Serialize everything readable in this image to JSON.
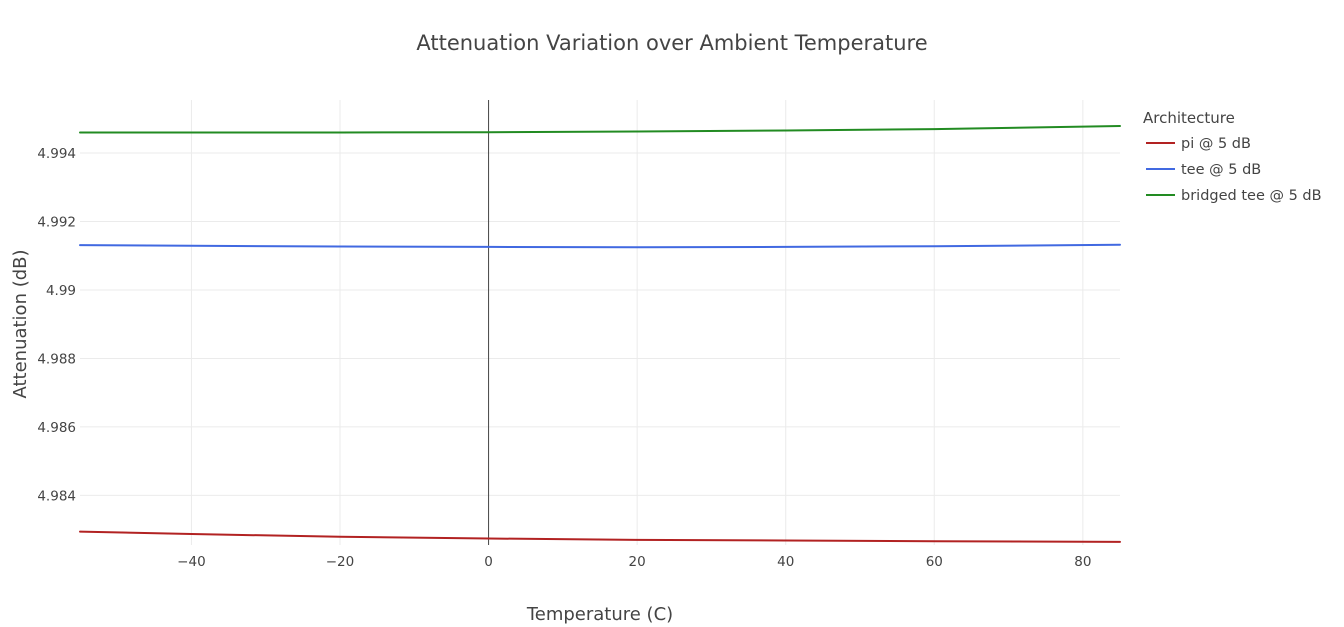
{
  "chart_data": {
    "type": "line",
    "title": "Attenuation Variation over Ambient Temperature",
    "xlabel": "Temperature (C)",
    "ylabel": "Attenuation (dB)",
    "xlim": [
      -55,
      85
    ],
    "ylim": [
      4.98255,
      4.99555
    ],
    "x_ticks": [
      {
        "value": -40,
        "label": "−40"
      },
      {
        "value": -20,
        "label": "−20"
      },
      {
        "value": 0,
        "label": "0"
      },
      {
        "value": 20,
        "label": "20"
      },
      {
        "value": 40,
        "label": "40"
      },
      {
        "value": 60,
        "label": "60"
      },
      {
        "value": 80,
        "label": "80"
      }
    ],
    "y_ticks": [
      {
        "value": 4.984,
        "label": "4.984"
      },
      {
        "value": 4.986,
        "label": "4.986"
      },
      {
        "value": 4.988,
        "label": "4.988"
      },
      {
        "value": 4.99,
        "label": "4.99"
      },
      {
        "value": 4.992,
        "label": "4.992"
      },
      {
        "value": 4.994,
        "label": "4.994"
      }
    ],
    "grid": true,
    "legend": {
      "title": "Architecture",
      "placement": "top-right"
    },
    "x": [
      -55,
      -40,
      -20,
      0,
      20,
      40,
      60,
      85
    ],
    "series": [
      {
        "name": "pi @ 5 dB",
        "color": "#b22222",
        "values": [
          4.98294,
          4.98287,
          4.98279,
          4.98274,
          4.9827,
          4.98268,
          4.98266,
          4.98264
        ]
      },
      {
        "name": "tee @ 5 dB",
        "color": "#4169e1",
        "values": [
          4.99131,
          4.99129,
          4.99127,
          4.99126,
          4.99125,
          4.99126,
          4.99128,
          4.99132
        ]
      },
      {
        "name": "bridged tee @ 5 dB",
        "color": "#228b22",
        "values": [
          4.9946,
          4.9946,
          4.9946,
          4.99461,
          4.99463,
          4.99466,
          4.9947,
          4.99479
        ]
      }
    ]
  }
}
